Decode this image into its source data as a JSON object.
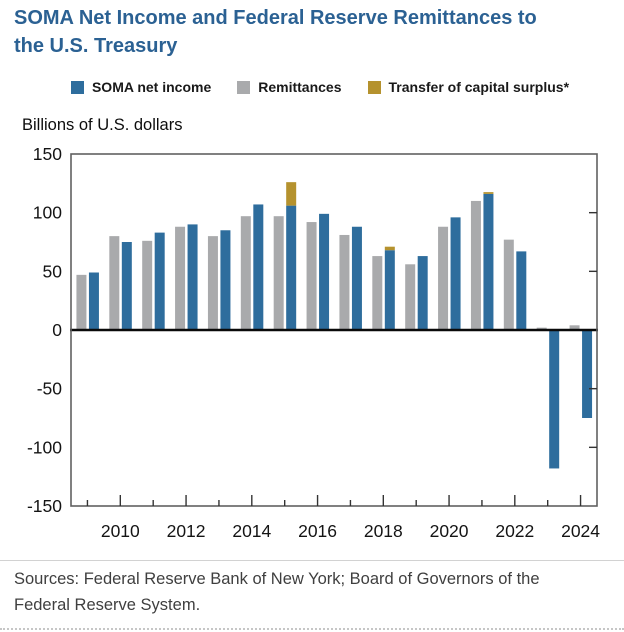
{
  "header": {
    "title_line1": "SOMA Net Income and Federal Reserve Remittances to",
    "title_line2": "the U.S. Treasury"
  },
  "legend": {
    "items": [
      {
        "label": "SOMA net income",
        "color": "#2e6d9d"
      },
      {
        "label": "Remittances",
        "color": "#a9aaac"
      },
      {
        "label": "Transfer of capital surplus*",
        "color": "#b5922e"
      }
    ]
  },
  "chart_data": {
    "type": "bar",
    "title": "SOMA Net Income and Federal Reserve Remittances to the U.S. Treasury",
    "ylabel": "Billions of U.S. dollars",
    "xlabel": "",
    "ylim": [
      -150,
      150
    ],
    "y_ticks": [
      150,
      100,
      50,
      0,
      -50,
      -100,
      -150
    ],
    "years": [
      2009,
      2010,
      2011,
      2012,
      2013,
      2014,
      2015,
      2016,
      2017,
      2018,
      2019,
      2020,
      2021,
      2022,
      2023,
      2024
    ],
    "x_tick_labels": [
      2010,
      2012,
      2014,
      2016,
      2018,
      2020,
      2022,
      2024
    ],
    "grid": false,
    "legend_position": "top",
    "series": [
      {
        "name": "SOMA net income",
        "color": "#2e6d9d",
        "values": [
          49,
          75,
          83,
          90,
          85,
          107,
          106,
          99,
          88,
          68,
          63,
          96,
          116,
          67,
          -118,
          -75
        ]
      },
      {
        "name": "Remittances",
        "color": "#a9aaac",
        "values": [
          47,
          80,
          76,
          88,
          80,
          97,
          97,
          92,
          81,
          63,
          56,
          88,
          110,
          77,
          2,
          4
        ]
      },
      {
        "name": "Transfer of capital surplus*",
        "color": "#b5922e",
        "stacked_on": "SOMA net income",
        "values": [
          0,
          0,
          0,
          0,
          0,
          0,
          20,
          0,
          0,
          3,
          0,
          0,
          1.5,
          0,
          0,
          0
        ]
      }
    ]
  },
  "footer": {
    "sources_line1": "Sources: Federal Reserve Bank of New York; Board of Governors of the",
    "sources_line2": "Federal Reserve System."
  }
}
